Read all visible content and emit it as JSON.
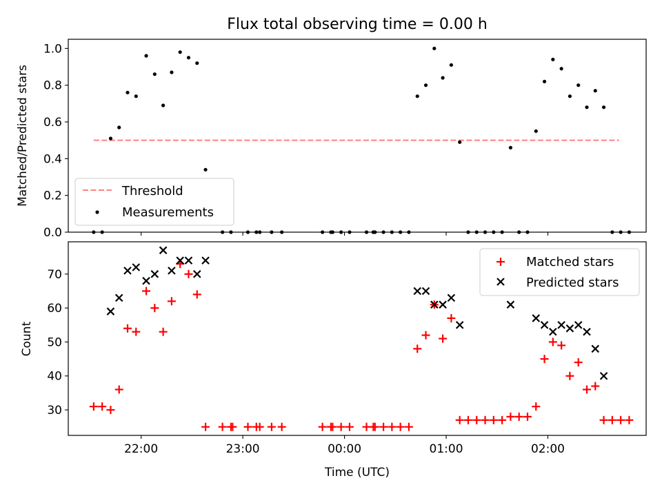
{
  "chart_data": [
    {
      "type": "scatter",
      "title": "Flux total observing time = 0.00 h",
      "xlabel": "",
      "ylabel": "Matched/Predicted stars",
      "xlim": [
        "21:17",
        "02:58"
      ],
      "ylim": [
        0,
        1.05
      ],
      "yticks": [
        "0.0",
        "0.2",
        "0.4",
        "0.6",
        "0.8",
        "1.0"
      ],
      "legend": {
        "placement": "lower-left",
        "entries": [
          "Threshold",
          "Measurements"
        ]
      },
      "threshold": {
        "name": "Threshold",
        "value": 0.5,
        "x_start": "21:32",
        "x_end": "02:42",
        "color": "#ff7f7f"
      },
      "series": [
        {
          "name": "Measurements",
          "color": "#000000",
          "points": [
            [
              "21:32",
              0.0
            ],
            [
              "21:37",
              0.0
            ],
            [
              "21:42",
              0.51
            ],
            [
              "21:47",
              0.57
            ],
            [
              "21:52",
              0.76
            ],
            [
              "21:57",
              0.74
            ],
            [
              "22:03",
              0.96
            ],
            [
              "22:08",
              0.86
            ],
            [
              "22:13",
              0.69
            ],
            [
              "22:18",
              0.87
            ],
            [
              "22:23",
              0.98
            ],
            [
              "22:28",
              0.95
            ],
            [
              "22:33",
              0.92
            ],
            [
              "22:38",
              0.34
            ],
            [
              "22:48",
              0.0
            ],
            [
              "22:53",
              0.0
            ],
            [
              "23:03",
              0.0
            ],
            [
              "23:08",
              0.0
            ],
            [
              "23:10",
              0.0
            ],
            [
              "23:17",
              0.0
            ],
            [
              "23:23",
              0.0
            ],
            [
              "23:47",
              0.0
            ],
            [
              "23:52",
              0.0
            ],
            [
              "23:53",
              0.0
            ],
            [
              "23:58",
              0.0
            ],
            [
              "00:03",
              0.0
            ],
            [
              "00:13",
              0.0
            ],
            [
              "00:17",
              0.0
            ],
            [
              "00:18",
              0.0
            ],
            [
              "00:23",
              0.0
            ],
            [
              "00:28",
              0.0
            ],
            [
              "00:33",
              0.0
            ],
            [
              "00:38",
              0.0
            ],
            [
              "00:43",
              0.74
            ],
            [
              "00:48",
              0.8
            ],
            [
              "00:53",
              1.0
            ],
            [
              "00:58",
              0.84
            ],
            [
              "01:03",
              0.91
            ],
            [
              "01:08",
              0.49
            ],
            [
              "01:13",
              0.0
            ],
            [
              "01:18",
              0.0
            ],
            [
              "01:23",
              0.0
            ],
            [
              "01:28",
              0.0
            ],
            [
              "01:33",
              0.0
            ],
            [
              "01:38",
              0.46
            ],
            [
              "01:43",
              0.0
            ],
            [
              "01:48",
              0.0
            ],
            [
              "01:53",
              0.55
            ],
            [
              "01:58",
              0.82
            ],
            [
              "02:03",
              0.94
            ],
            [
              "02:08",
              0.89
            ],
            [
              "02:13",
              0.74
            ],
            [
              "02:18",
              0.8
            ],
            [
              "02:23",
              0.68
            ],
            [
              "02:28",
              0.77
            ],
            [
              "02:33",
              0.68
            ],
            [
              "02:38",
              0.0
            ],
            [
              "02:43",
              0.0
            ],
            [
              "02:48",
              0.0
            ]
          ]
        }
      ]
    },
    {
      "type": "scatter",
      "title": "",
      "xlabel": "Time (UTC)",
      "ylabel": "Count",
      "xlim": [
        "21:17",
        "02:58"
      ],
      "ylim": [
        22.5,
        79.5
      ],
      "yticks": [
        "30",
        "40",
        "50",
        "60",
        "70"
      ],
      "xticks": [
        "22:00",
        "23:00",
        "00:00",
        "01:00",
        "02:00"
      ],
      "legend": {
        "placement": "upper-right",
        "entries": [
          "Matched stars",
          "Predicted stars"
        ]
      },
      "series": [
        {
          "name": "Matched stars",
          "marker": "plus",
          "color": "#ff0000",
          "points": [
            [
              "21:32",
              31
            ],
            [
              "21:37",
              31
            ],
            [
              "21:42",
              30
            ],
            [
              "21:47",
              36
            ],
            [
              "21:52",
              54
            ],
            [
              "21:57",
              53
            ],
            [
              "22:03",
              65
            ],
            [
              "22:08",
              60
            ],
            [
              "22:13",
              53
            ],
            [
              "22:18",
              62
            ],
            [
              "22:23",
              73
            ],
            [
              "22:28",
              70
            ],
            [
              "22:33",
              64
            ],
            [
              "22:38",
              25
            ],
            [
              "22:48",
              25
            ],
            [
              "22:53",
              25
            ],
            [
              "22:54",
              25
            ],
            [
              "23:03",
              25
            ],
            [
              "23:08",
              25
            ],
            [
              "23:10",
              25
            ],
            [
              "23:17",
              25
            ],
            [
              "23:23",
              25
            ],
            [
              "23:47",
              25
            ],
            [
              "23:52",
              25
            ],
            [
              "23:53",
              25
            ],
            [
              "23:58",
              25
            ],
            [
              "00:03",
              25
            ],
            [
              "00:13",
              25
            ],
            [
              "00:17",
              25
            ],
            [
              "00:18",
              25
            ],
            [
              "00:23",
              25
            ],
            [
              "00:28",
              25
            ],
            [
              "00:33",
              25
            ],
            [
              "00:38",
              25
            ],
            [
              "00:43",
              48
            ],
            [
              "00:48",
              52
            ],
            [
              "00:53",
              61
            ],
            [
              "00:58",
              51
            ],
            [
              "01:03",
              57
            ],
            [
              "01:08",
              27
            ],
            [
              "01:13",
              27
            ],
            [
              "01:18",
              27
            ],
            [
              "01:23",
              27
            ],
            [
              "01:28",
              27
            ],
            [
              "01:33",
              27
            ],
            [
              "01:38",
              28
            ],
            [
              "01:43",
              28
            ],
            [
              "01:48",
              28
            ],
            [
              "01:53",
              31
            ],
            [
              "01:58",
              45
            ],
            [
              "02:03",
              50
            ],
            [
              "02:08",
              49
            ],
            [
              "02:13",
              40
            ],
            [
              "02:18",
              44
            ],
            [
              "02:23",
              36
            ],
            [
              "02:28",
              37
            ],
            [
              "02:33",
              27
            ],
            [
              "02:38",
              27
            ],
            [
              "02:43",
              27
            ],
            [
              "02:48",
              27
            ]
          ]
        },
        {
          "name": "Predicted stars",
          "marker": "x",
          "color": "#000000",
          "points": [
            [
              "21:42",
              59
            ],
            [
              "21:47",
              63
            ],
            [
              "21:52",
              71
            ],
            [
              "21:57",
              72
            ],
            [
              "22:03",
              68
            ],
            [
              "22:08",
              70
            ],
            [
              "22:13",
              77
            ],
            [
              "22:18",
              71
            ],
            [
              "22:23",
              74
            ],
            [
              "22:28",
              74
            ],
            [
              "22:33",
              70
            ],
            [
              "22:38",
              74
            ],
            [
              "00:43",
              65
            ],
            [
              "00:48",
              65
            ],
            [
              "00:53",
              61
            ],
            [
              "00:58",
              61
            ],
            [
              "01:03",
              63
            ],
            [
              "01:08",
              55
            ],
            [
              "01:38",
              61
            ],
            [
              "01:53",
              57
            ],
            [
              "01:58",
              55
            ],
            [
              "02:03",
              53
            ],
            [
              "02:08",
              55
            ],
            [
              "02:13",
              54
            ],
            [
              "02:18",
              55
            ],
            [
              "02:23",
              53
            ],
            [
              "02:28",
              48
            ],
            [
              "02:33",
              40
            ]
          ]
        }
      ]
    }
  ]
}
